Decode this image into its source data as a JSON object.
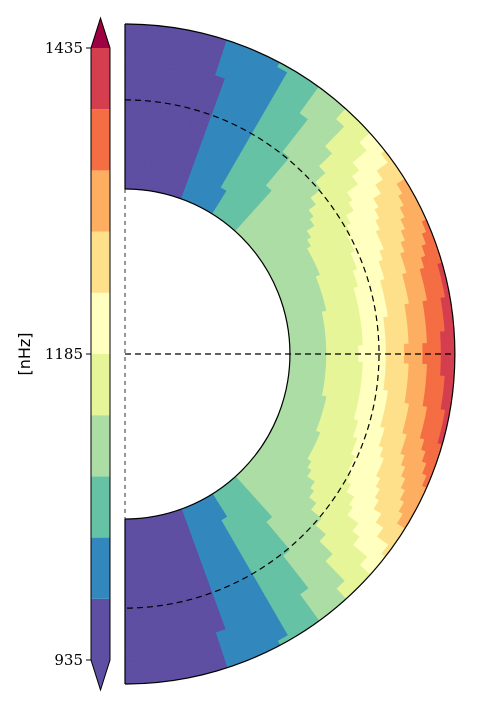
{
  "chart_data": {
    "type": "heatmap",
    "title": "",
    "colorbar": {
      "label": "[nHz]",
      "ticks": [
        {
          "value": 1435,
          "label": "1435"
        },
        {
          "value": 1185,
          "label": "1185"
        },
        {
          "value": 935,
          "label": "935"
        }
      ],
      "range": [
        935,
        1435
      ],
      "levels": 10,
      "extend": "both",
      "colors": [
        "#5e4fa2",
        "#3288bd",
        "#66c2a5",
        "#abdda4",
        "#e6f598",
        "#ffffbf",
        "#fee08b",
        "#fdae61",
        "#f46d43",
        "#d53e4f",
        "#9e0142"
      ]
    },
    "domain": {
      "shape": "meridional half-annulus",
      "inner_radius_fraction": 0.5,
      "reference_radius_fraction": 0.77,
      "equator_line": true,
      "axis_line": "dashed"
    },
    "field_by_latitude": [
      {
        "latitude_deg": 0,
        "surface_nHz": 1430,
        "interior_nHz": 1110
      },
      {
        "latitude_deg": 15,
        "surface_nHz": 1395,
        "interior_nHz": 1110
      },
      {
        "latitude_deg": 30,
        "surface_nHz": 1310,
        "interior_nHz": 1110
      },
      {
        "latitude_deg": 45,
        "surface_nHz": 1160,
        "interior_nHz": 1095
      },
      {
        "latitude_deg": 60,
        "surface_nHz": 1040,
        "interior_nHz": 1030
      },
      {
        "latitude_deg": 75,
        "surface_nHz": 970,
        "interior_nHz": 960
      },
      {
        "latitude_deg": 90,
        "surface_nHz": 945,
        "interior_nHz": 945
      }
    ]
  }
}
